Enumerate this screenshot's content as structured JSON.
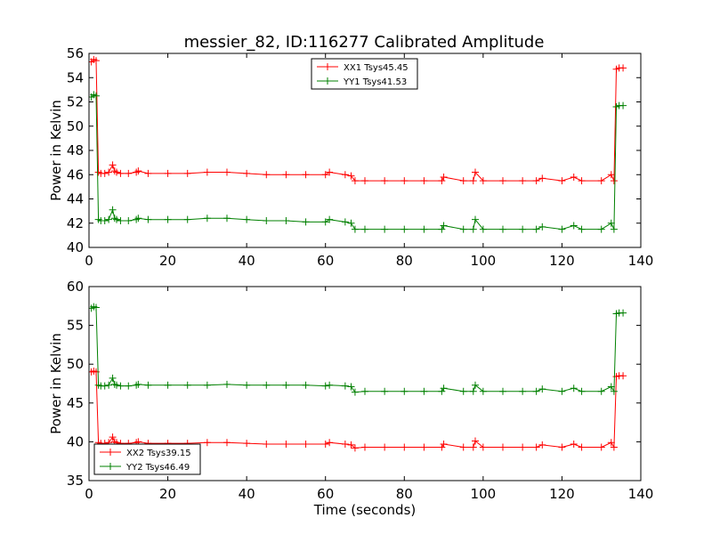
{
  "figure": {
    "title": "messier_82, ID:116277 Calibrated Amplitude"
  },
  "chart_data": [
    {
      "type": "line",
      "title": "messier_82, ID:116277 Calibrated Amplitude",
      "xlabel": "",
      "ylabel": "Power in Kelvin",
      "xlim": [
        0,
        140
      ],
      "ylim": [
        40,
        56
      ],
      "xticks": [
        "0",
        "20",
        "40",
        "60",
        "80",
        "100",
        "120",
        "140"
      ],
      "yticks": [
        "40",
        "42",
        "44",
        "46",
        "48",
        "50",
        "52",
        "54",
        "56"
      ],
      "grid": false,
      "legend_position": "top-center",
      "series": [
        {
          "name": "XX1 Tsys45.45",
          "color": "#ff0000",
          "marker": "plus",
          "x": [
            0.6,
            1.2,
            1.8,
            2.4,
            3.0,
            4.0,
            5.0,
            6.0,
            6.5,
            7.0,
            8.0,
            10.0,
            12.0,
            12.5,
            15.0,
            20.0,
            25.0,
            30.0,
            35.0,
            40.0,
            45.0,
            50.0,
            55.0,
            60.0,
            61.0,
            65.0,
            66.5,
            67.5,
            70.0,
            75.0,
            80.0,
            85.0,
            89.5,
            90.0,
            95.0,
            97.5,
            98.0,
            100.0,
            105.0,
            110.0,
            113.5,
            115.0,
            120.0,
            123.0,
            125.0,
            130.0,
            132.5,
            133.2,
            133.8,
            134.5,
            135.5
          ],
          "y": [
            55.3,
            55.5,
            55.4,
            46.2,
            46.1,
            46.1,
            46.2,
            46.8,
            46.3,
            46.2,
            46.1,
            46.1,
            46.2,
            46.3,
            46.1,
            46.1,
            46.1,
            46.2,
            46.2,
            46.1,
            46.0,
            46.0,
            46.0,
            46.0,
            46.2,
            46.0,
            45.9,
            45.5,
            45.5,
            45.5,
            45.5,
            45.5,
            45.5,
            45.8,
            45.5,
            45.5,
            46.2,
            45.5,
            45.5,
            45.5,
            45.5,
            45.7,
            45.5,
            45.8,
            45.5,
            45.5,
            46.0,
            45.5,
            54.7,
            54.8,
            54.8
          ]
        },
        {
          "name": "YY1 Tsys41.53",
          "color": "#008000",
          "marker": "plus",
          "x": [
            0.6,
            1.2,
            1.8,
            2.4,
            3.0,
            4.0,
            5.0,
            6.0,
            6.5,
            7.0,
            8.0,
            10.0,
            12.0,
            12.5,
            15.0,
            20.0,
            25.0,
            30.0,
            35.0,
            40.0,
            45.0,
            50.0,
            55.0,
            60.0,
            61.0,
            65.0,
            66.5,
            67.5,
            70.0,
            75.0,
            80.0,
            85.0,
            89.5,
            90.0,
            95.0,
            97.5,
            98.0,
            100.0,
            105.0,
            110.0,
            113.5,
            115.0,
            120.0,
            123.0,
            125.0,
            130.0,
            132.5,
            133.2,
            133.8,
            134.5,
            135.5
          ],
          "y": [
            52.4,
            52.6,
            52.5,
            42.3,
            42.2,
            42.2,
            42.3,
            43.1,
            42.4,
            42.3,
            42.2,
            42.2,
            42.3,
            42.4,
            42.3,
            42.3,
            42.3,
            42.4,
            42.4,
            42.3,
            42.2,
            42.2,
            42.1,
            42.1,
            42.3,
            42.1,
            42.0,
            41.5,
            41.5,
            41.5,
            41.5,
            41.5,
            41.5,
            41.8,
            41.5,
            41.5,
            42.3,
            41.5,
            41.5,
            41.5,
            41.5,
            41.7,
            41.5,
            41.8,
            41.5,
            41.5,
            42.0,
            41.5,
            51.6,
            51.7,
            51.7
          ]
        }
      ]
    },
    {
      "type": "line",
      "title": "",
      "xlabel": "Time (seconds)",
      "ylabel": "Power in Kelvin",
      "xlim": [
        0,
        140
      ],
      "ylim": [
        35,
        60
      ],
      "xticks": [
        "0",
        "20",
        "40",
        "60",
        "80",
        "100",
        "120",
        "140"
      ],
      "yticks": [
        "35",
        "40",
        "45",
        "50",
        "55",
        "60"
      ],
      "grid": false,
      "legend_position": "bottom-left",
      "series": [
        {
          "name": "XX2 Tsys39.15",
          "color": "#ff0000",
          "marker": "plus",
          "x": [
            0.6,
            1.2,
            1.8,
            2.4,
            3.0,
            4.0,
            5.0,
            6.0,
            6.5,
            7.0,
            8.0,
            10.0,
            12.0,
            12.5,
            15.0,
            20.0,
            25.0,
            30.0,
            35.0,
            40.0,
            45.0,
            50.0,
            55.0,
            60.0,
            61.0,
            65.0,
            66.5,
            67.5,
            70.0,
            75.0,
            80.0,
            85.0,
            89.5,
            90.0,
            95.0,
            97.5,
            98.0,
            100.0,
            105.0,
            110.0,
            113.5,
            115.0,
            120.0,
            123.0,
            125.0,
            130.0,
            132.5,
            133.2,
            133.8,
            134.5,
            135.5
          ],
          "y": [
            49.0,
            49.1,
            49.0,
            39.9,
            39.8,
            39.8,
            39.9,
            40.6,
            40.0,
            39.9,
            39.8,
            39.8,
            39.9,
            40.0,
            39.8,
            39.8,
            39.8,
            39.9,
            39.9,
            39.8,
            39.7,
            39.7,
            39.7,
            39.7,
            39.9,
            39.7,
            39.6,
            39.2,
            39.3,
            39.3,
            39.3,
            39.3,
            39.3,
            39.7,
            39.3,
            39.3,
            40.1,
            39.3,
            39.3,
            39.3,
            39.3,
            39.6,
            39.3,
            39.7,
            39.3,
            39.3,
            39.9,
            39.3,
            48.4,
            48.5,
            48.5
          ]
        },
        {
          "name": "YY2 Tsys46.49",
          "color": "#008000",
          "marker": "plus",
          "x": [
            0.6,
            1.2,
            1.8,
            2.4,
            3.0,
            4.0,
            5.0,
            6.0,
            6.5,
            7.0,
            8.0,
            10.0,
            12.0,
            12.5,
            15.0,
            20.0,
            25.0,
            30.0,
            35.0,
            40.0,
            45.0,
            50.0,
            55.0,
            60.0,
            61.0,
            65.0,
            66.5,
            67.5,
            70.0,
            75.0,
            80.0,
            85.0,
            89.5,
            90.0,
            95.0,
            97.5,
            98.0,
            100.0,
            105.0,
            110.0,
            113.5,
            115.0,
            120.0,
            123.0,
            125.0,
            130.0,
            132.5,
            133.2,
            133.8,
            134.5,
            135.5
          ],
          "y": [
            57.2,
            57.4,
            57.3,
            47.3,
            47.2,
            47.2,
            47.3,
            48.2,
            47.4,
            47.3,
            47.2,
            47.2,
            47.3,
            47.4,
            47.3,
            47.3,
            47.3,
            47.3,
            47.4,
            47.3,
            47.3,
            47.3,
            47.3,
            47.2,
            47.3,
            47.2,
            47.1,
            46.4,
            46.5,
            46.5,
            46.5,
            46.5,
            46.5,
            46.9,
            46.5,
            46.5,
            47.3,
            46.5,
            46.5,
            46.5,
            46.5,
            46.8,
            46.5,
            46.9,
            46.5,
            46.5,
            47.1,
            46.5,
            56.5,
            56.6,
            56.6
          ]
        }
      ]
    }
  ]
}
